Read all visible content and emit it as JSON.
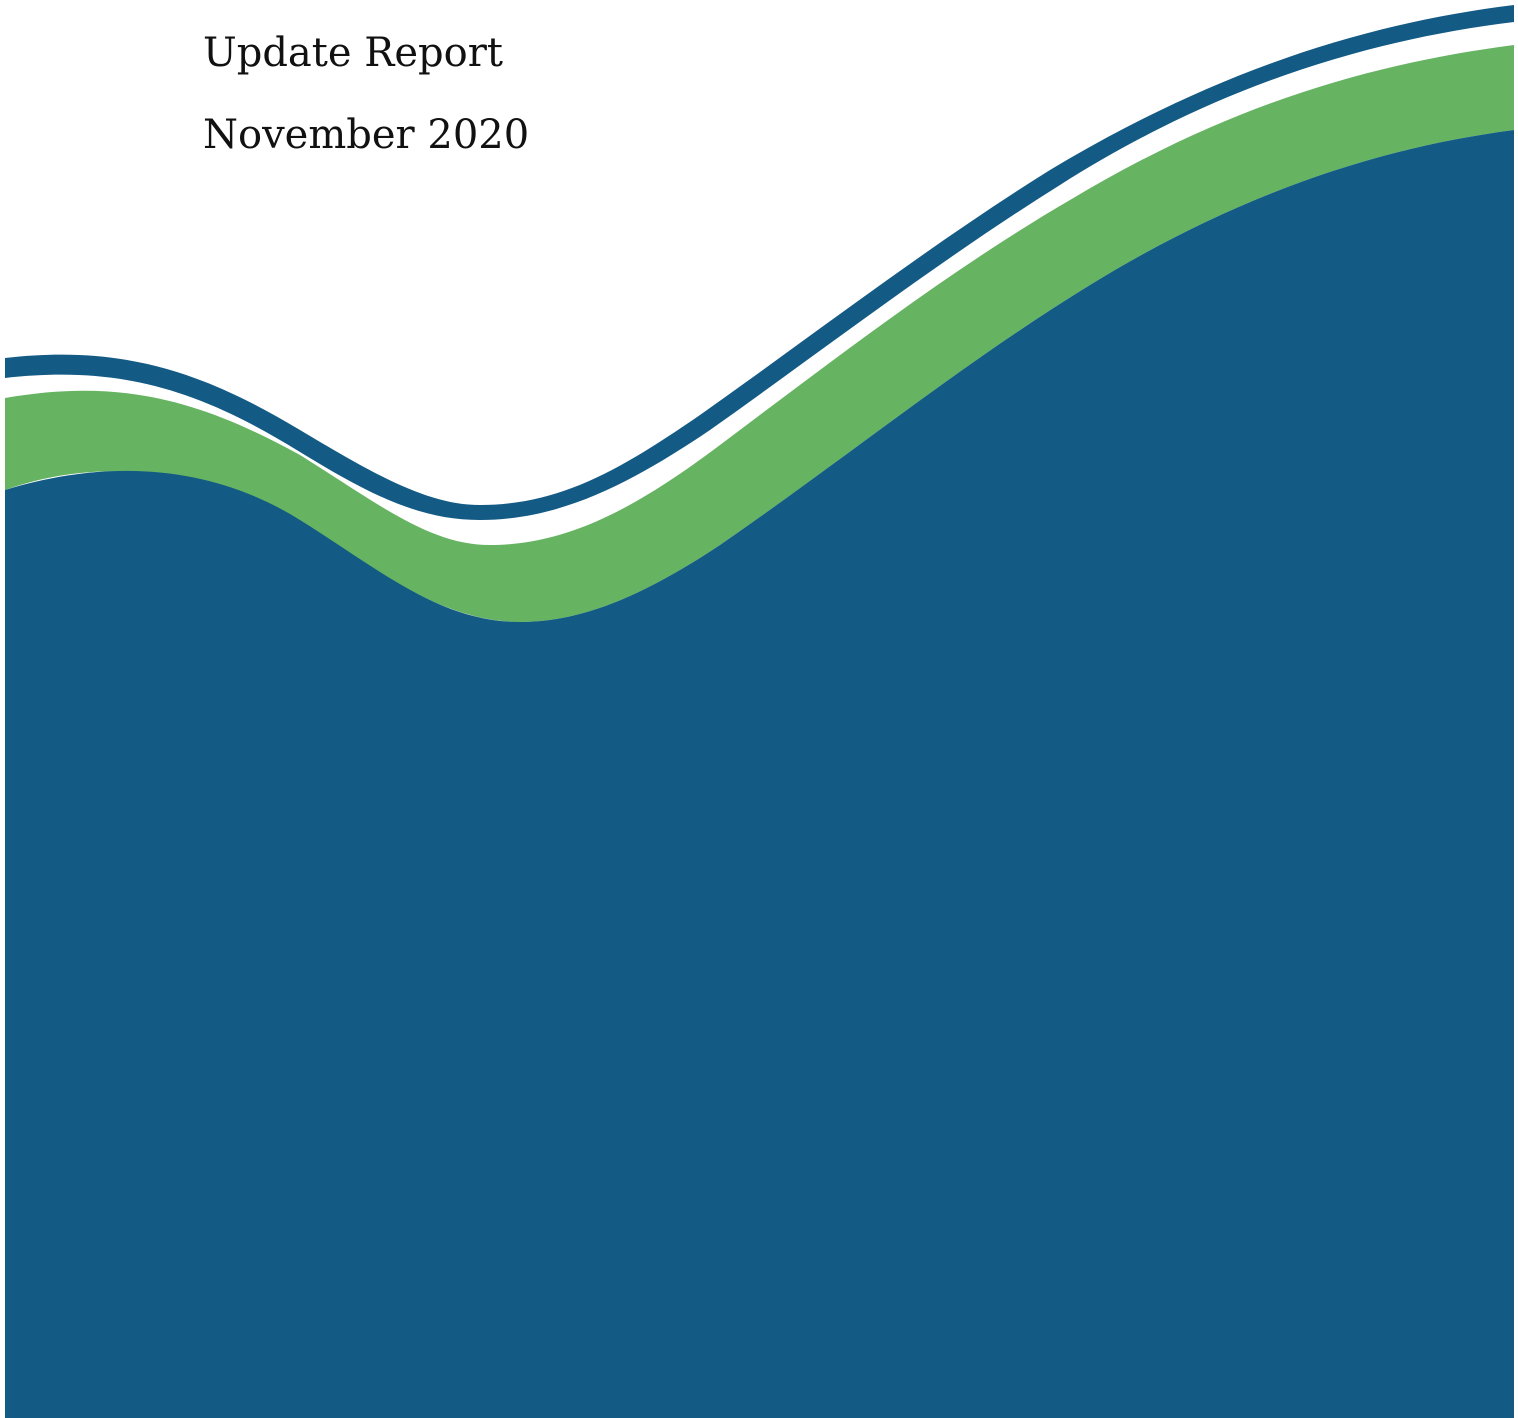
{
  "header": {
    "title": "Update Report",
    "date": "November 2020"
  }
}
